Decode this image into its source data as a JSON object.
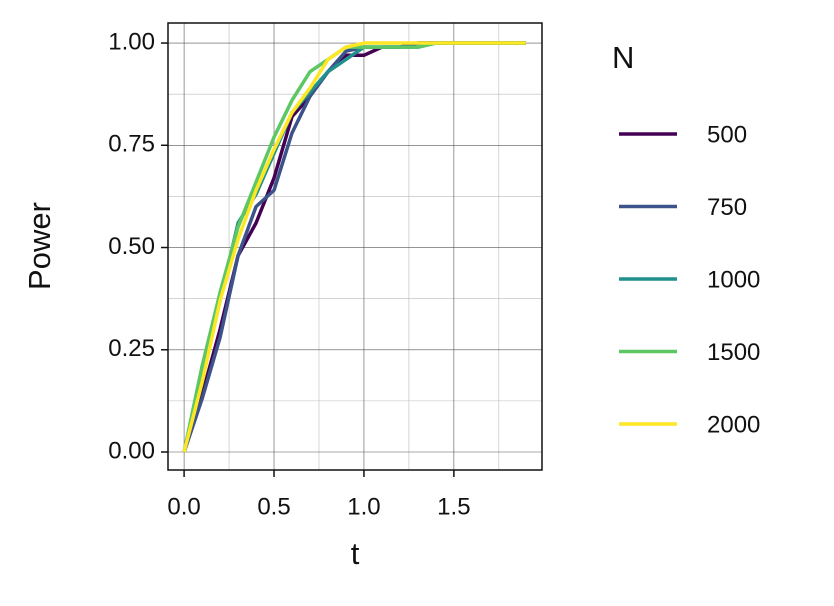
{
  "chart_data": {
    "type": "line",
    "xlabel": "t",
    "ylabel": "Power",
    "legend_title": "N",
    "x": [
      0,
      0.1,
      0.2,
      0.3,
      0.4,
      0.5,
      0.6,
      0.7,
      0.8,
      0.9,
      1.0,
      1.1,
      1.2,
      1.3,
      1.4,
      1.5,
      1.6,
      1.7,
      1.8,
      1.9
    ],
    "series": [
      {
        "name": "500",
        "color": "#440154",
        "values": [
          0,
          0.14,
          0.3,
          0.48,
          0.56,
          0.67,
          0.82,
          0.87,
          0.93,
          0.97,
          0.97,
          0.99,
          0.99,
          1,
          1,
          1,
          1,
          1,
          1,
          1
        ]
      },
      {
        "name": "750",
        "color": "#3b528b",
        "values": [
          0,
          0.13,
          0.28,
          0.48,
          0.6,
          0.64,
          0.78,
          0.87,
          0.93,
          0.98,
          0.99,
          0.99,
          0.99,
          1,
          1,
          1,
          1,
          1,
          1,
          1
        ]
      },
      {
        "name": "1000",
        "color": "#21908c",
        "values": [
          0,
          0.19,
          0.37,
          0.56,
          0.63,
          0.73,
          0.83,
          0.88,
          0.93,
          0.96,
          0.99,
          0.99,
          0.99,
          0.99,
          1,
          1,
          1,
          1,
          1,
          1
        ]
      },
      {
        "name": "1500",
        "color": "#5dc863",
        "values": [
          0,
          0.21,
          0.39,
          0.55,
          0.66,
          0.77,
          0.86,
          0.93,
          0.96,
          0.99,
          0.99,
          0.99,
          0.99,
          0.99,
          1,
          1,
          1,
          1,
          1,
          1
        ]
      },
      {
        "name": "2000",
        "color": "#fde725",
        "values": [
          0,
          0.17,
          0.37,
          0.52,
          0.64,
          0.74,
          0.83,
          0.89,
          0.96,
          0.99,
          1,
          1,
          1,
          1,
          1,
          1,
          1,
          1,
          1,
          1
        ]
      }
    ],
    "xlim": [
      -0.0895,
      1.99
    ],
    "ylim": [
      -0.044,
      1.049
    ],
    "xticks": [
      {
        "value": 0,
        "label": "0.0"
      },
      {
        "value": 0.5,
        "label": "0.5"
      },
      {
        "value": 1,
        "label": "1.0"
      },
      {
        "value": 1.5,
        "label": "1.5"
      }
    ],
    "yticks": [
      {
        "value": 0,
        "label": "0.00"
      },
      {
        "value": 0.25,
        "label": "0.25"
      },
      {
        "value": 0.5,
        "label": "0.50"
      },
      {
        "value": 0.75,
        "label": "0.75"
      },
      {
        "value": 1,
        "label": "1.00"
      }
    ],
    "x_minor_ticks": [
      0.25,
      0.75,
      1.25,
      1.75
    ],
    "y_minor_ticks": [
      0.125,
      0.375,
      0.625,
      0.875
    ],
    "grid": true,
    "legend": "right"
  }
}
